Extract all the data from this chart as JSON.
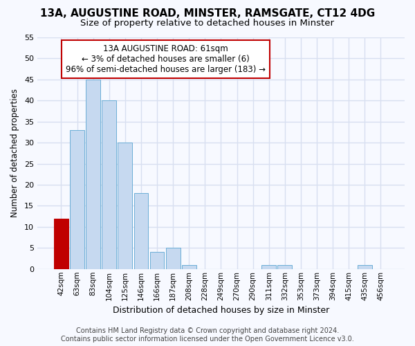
{
  "title": "13A, AUGUSTINE ROAD, MINSTER, RAMSGATE, CT12 4DG",
  "subtitle": "Size of property relative to detached houses in Minster",
  "xlabel": "Distribution of detached houses by size in Minster",
  "ylabel": "Number of detached properties",
  "bar_labels": [
    "42sqm",
    "63sqm",
    "83sqm",
    "104sqm",
    "125sqm",
    "146sqm",
    "166sqm",
    "187sqm",
    "208sqm",
    "228sqm",
    "249sqm",
    "270sqm",
    "290sqm",
    "311sqm",
    "332sqm",
    "353sqm",
    "373sqm",
    "394sqm",
    "415sqm",
    "435sqm",
    "456sqm"
  ],
  "bar_values": [
    12,
    33,
    45,
    40,
    30,
    18,
    4,
    5,
    1,
    0,
    0,
    0,
    0,
    1,
    1,
    0,
    0,
    0,
    0,
    1,
    0
  ],
  "bar_colors": [
    "#c00000",
    "#c6d9f0",
    "#c6d9f0",
    "#c6d9f0",
    "#c6d9f0",
    "#c6d9f0",
    "#c6d9f0",
    "#c6d9f0",
    "#c6d9f0",
    "#c6d9f0",
    "#c6d9f0",
    "#c6d9f0",
    "#c6d9f0",
    "#c6d9f0",
    "#c6d9f0",
    "#c6d9f0",
    "#c6d9f0",
    "#c6d9f0",
    "#c6d9f0",
    "#c6d9f0",
    "#c6d9f0"
  ],
  "bar_edgecolors": [
    "#c00000",
    "#6baed6",
    "#6baed6",
    "#6baed6",
    "#6baed6",
    "#6baed6",
    "#6baed6",
    "#6baed6",
    "#6baed6",
    "#6baed6",
    "#6baed6",
    "#6baed6",
    "#6baed6",
    "#6baed6",
    "#6baed6",
    "#6baed6",
    "#6baed6",
    "#6baed6",
    "#6baed6",
    "#6baed6",
    "#6baed6"
  ],
  "ylim": [
    0,
    55
  ],
  "yticks": [
    0,
    5,
    10,
    15,
    20,
    25,
    30,
    35,
    40,
    45,
    50,
    55
  ],
  "annotation_line1": "13A AUGUSTINE ROAD: 61sqm",
  "annotation_line2": "← 3% of detached houses are smaller (6)",
  "annotation_line3": "96% of semi-detached houses are larger (183) →",
  "annotation_box_color": "#ffffff",
  "annotation_box_edgecolor": "#c00000",
  "footer1": "Contains HM Land Registry data © Crown copyright and database right 2024.",
  "footer2": "Contains public sector information licensed under the Open Government Licence v3.0.",
  "bg_color": "#f7f9ff",
  "plot_bg_color": "#f7f9ff",
  "grid_color": "#d8dff0"
}
